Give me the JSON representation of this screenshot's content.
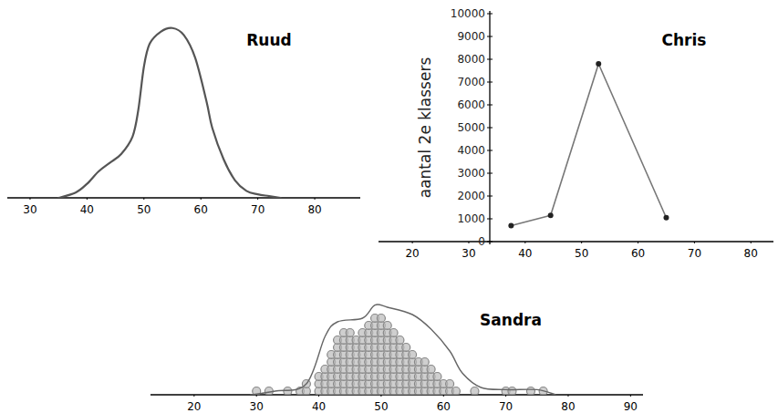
{
  "chart_data": [
    {
      "type": "line",
      "title": "Ruud",
      "x": [
        35,
        38,
        40,
        42,
        44,
        46,
        48,
        49,
        50,
        51,
        53,
        55,
        57,
        59,
        61,
        62,
        64,
        66,
        68,
        70,
        72,
        74
      ],
      "values": [
        0,
        3,
        8,
        15,
        20,
        25,
        35,
        50,
        75,
        88,
        95,
        97,
        93,
        80,
        55,
        40,
        22,
        10,
        4,
        2,
        1,
        0
      ],
      "xlim": [
        26,
        88
      ],
      "xticks": [
        30,
        40,
        50,
        60,
        70,
        80
      ],
      "ylim": [
        0,
        100
      ],
      "tick_labels": "x",
      "color": "#555555"
    },
    {
      "type": "line",
      "title": "Chris",
      "y_label": "aantal 2e klassers",
      "x": [
        37.5,
        44.5,
        53,
        65
      ],
      "values": [
        700,
        1150,
        7800,
        1050
      ],
      "xlim": [
        14,
        84
      ],
      "xticks": [
        20,
        30,
        40,
        50,
        60,
        70,
        80
      ],
      "ylim": [
        0,
        10000
      ],
      "yticks": [
        0,
        1000,
        2000,
        3000,
        4000,
        5000,
        6000,
        7000,
        8000,
        9000,
        10000
      ],
      "marker": "dot",
      "color": "#777777"
    },
    {
      "type": "dot_plot",
      "title": "Sandra",
      "x": [
        30,
        32,
        35,
        37,
        38,
        40,
        41,
        42,
        43,
        44,
        45,
        46,
        47,
        48,
        49,
        50,
        51,
        52,
        53,
        54,
        55,
        56,
        57,
        58,
        59,
        60,
        61,
        62,
        65,
        70,
        71,
        74,
        76
      ],
      "values": [
        1,
        1,
        1,
        1,
        2,
        3,
        4,
        6,
        8,
        9,
        9,
        8,
        9,
        10,
        11,
        11,
        10,
        9,
        8,
        7,
        6,
        5,
        5,
        4,
        3,
        2,
        2,
        1,
        1,
        1,
        1,
        1,
        1
      ],
      "envelope": {
        "x": [
          29,
          33,
          38,
          41,
          43,
          47,
          49,
          51,
          55,
          58,
          61,
          63,
          66,
          70,
          75,
          78
        ],
        "values": [
          0,
          0.5,
          1.5,
          8,
          10,
          10.5,
          12.3,
          12,
          11,
          9,
          6,
          3,
          1,
          0.7,
          0.7,
          0
        ]
      },
      "xlim": [
        13,
        92
      ],
      "xticks": [
        20,
        30,
        40,
        50,
        60,
        70,
        80,
        90
      ],
      "ylim": [
        0,
        14
      ],
      "tick_labels": "x",
      "color": "#888888"
    }
  ]
}
